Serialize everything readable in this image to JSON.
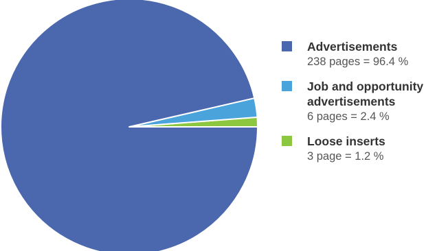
{
  "chart_data": {
    "type": "pie",
    "title": "",
    "slices": [
      {
        "label": "Advertisements",
        "value": 96.4,
        "pages": 238,
        "detail": "238 pages = 96.4 %",
        "color": "#4B67AE"
      },
      {
        "label": "Job and opportunity advertisements",
        "value": 2.4,
        "pages": 6,
        "detail": "6 pages = 2.4 %",
        "color": "#4AA3DA"
      },
      {
        "label": "Loose inserts",
        "value": 1.2,
        "pages": 3,
        "detail": "3 page = 1.2 %",
        "color": "#8DC63F"
      }
    ],
    "legend_position": "right"
  }
}
